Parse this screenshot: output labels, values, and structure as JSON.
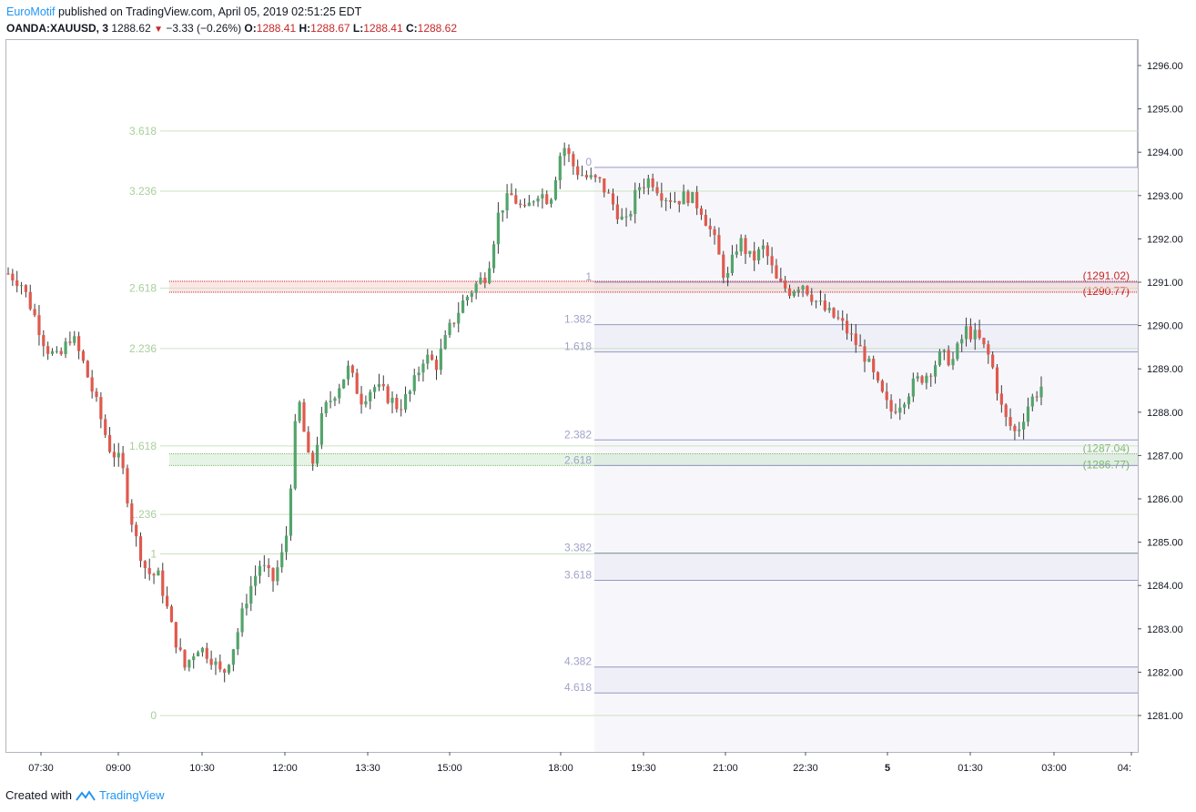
{
  "header": {
    "brand": "EuroMotif",
    "published": "published on TradingView.com, April 05, 2019 02:51:25 EDT",
    "symbol": "OANDA:XAUUSD, 3",
    "last": "1288.62",
    "change": "−3.33 (−0.26%)",
    "o_label": "O:",
    "o_val": "1288.41",
    "h_label": "H:",
    "h_val": "1288.67",
    "l_label": "L:",
    "l_val": "1288.41",
    "c_label": "C:",
    "c_val": "1288.62"
  },
  "footer": {
    "created_with": "Created with",
    "logo_text": "TradingView"
  },
  "colors": {
    "up": "#53a46b",
    "down": "#e0594d",
    "fib_green": "#7cb86b",
    "fib_blue": "#9598c7",
    "fib_red": "#c62828"
  },
  "chart_data": {
    "type": "candlestick",
    "ylim": [
      1280.2,
      1296.6
    ],
    "y_ticks": [
      "1281.00",
      "1282.00",
      "1283.00",
      "1284.00",
      "1285.00",
      "1286.00",
      "1287.00",
      "1288.00",
      "1289.00",
      "1290.00",
      "1291.00",
      "1292.00",
      "1293.00",
      "1294.00",
      "1295.00",
      "1296.00"
    ],
    "x_ticks": [
      "07:30",
      "09:00",
      "10:30",
      "12:00",
      "13:30",
      "15:00",
      "18:00",
      "19:30",
      "21:00",
      "22:30",
      "5",
      "01:30",
      "03:00",
      "04:"
    ],
    "price_path": [
      1291.2,
      1291.0,
      1290.3,
      1289.5,
      1289.2,
      1289.8,
      1289.1,
      1288.2,
      1287.2,
      1286.8,
      1285.2,
      1284.3,
      1284.2,
      1283.0,
      1282.1,
      1282.6,
      1282.4,
      1281.9,
      1282.7,
      1283.8,
      1284.5,
      1284.1,
      1284.9,
      1288.4,
      1286.6,
      1288.0,
      1288.5,
      1289.0,
      1288.3,
      1288.6,
      1288.4,
      1288.1,
      1288.5,
      1289.3,
      1289.1,
      1289.9,
      1290.5,
      1290.9,
      1291.2,
      1292.7,
      1293.0,
      1292.6,
      1293.1,
      1292.9,
      1294.2,
      1293.6,
      1293.4,
      1293.3,
      1292.8,
      1292.3,
      1293.2,
      1293.4,
      1293.0,
      1292.9,
      1293.0,
      1292.7,
      1292.0,
      1291.0,
      1292.0,
      1291.5,
      1291.8,
      1291.0,
      1290.8,
      1291.0,
      1290.6,
      1290.3,
      1290.1,
      1289.7,
      1289.3,
      1288.6,
      1288.0,
      1288.3,
      1288.7,
      1288.9,
      1289.3,
      1289.2,
      1289.9,
      1289.7,
      1289.2,
      1287.9,
      1287.5,
      1288.2,
      1288.6
    ],
    "fib_left": {
      "levels": [
        {
          "label": "3.618",
          "price": 1294.49
        },
        {
          "label": "3.236",
          "price": 1293.1
        },
        {
          "label": "2.618",
          "price": 1290.86
        },
        {
          "label": "2.236",
          "price": 1289.47
        },
        {
          "label": "1.618",
          "price": 1287.22
        },
        {
          "label": "1.236",
          "price": 1285.64
        },
        {
          "label": "1",
          "price": 1284.73
        },
        {
          "label": "0",
          "price": 1281.0
        }
      ]
    },
    "fib_right": {
      "levels": [
        {
          "label": "0",
          "price": 1293.65
        },
        {
          "label": "1",
          "price": 1291.0
        },
        {
          "label": "1.382",
          "price": 1290.02
        },
        {
          "label": "1.618",
          "price": 1289.39
        },
        {
          "label": "2.382",
          "price": 1287.36
        },
        {
          "label": "2.618",
          "price": 1286.77
        },
        {
          "label": "3.382",
          "price": 1284.75
        },
        {
          "label": "3.618",
          "price": 1284.12
        },
        {
          "label": "4.382",
          "price": 1282.12
        },
        {
          "label": "4.618",
          "price": 1281.52
        }
      ]
    },
    "zones": [
      {
        "type": "resistance",
        "top": "1291.02",
        "bottom": "1290.77"
      },
      {
        "type": "support",
        "top": "1287.04",
        "bottom": "1286.77"
      }
    ]
  }
}
